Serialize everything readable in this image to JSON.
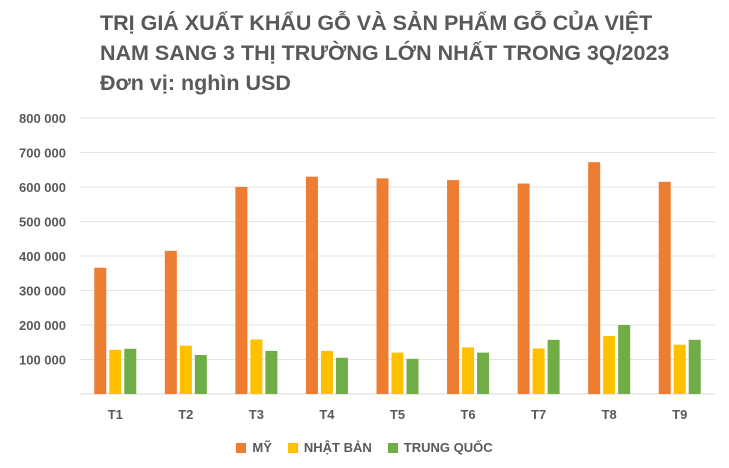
{
  "chart_data": {
    "type": "bar",
    "title_lines": [
      "TRỊ GIÁ XUẤT KHẨU GỖ VÀ SẢN PHẨM GỖ CỦA VIỆT",
      "NAM SANG 3 THỊ TRƯỜNG LỚN NHẤT TRONG 3Q/2023",
      "Đơn vị: nghìn USD"
    ],
    "categories": [
      "T1",
      "T2",
      "T3",
      "T4",
      "T5",
      "T6",
      "T7",
      "T8",
      "T9"
    ],
    "series": [
      {
        "name": "MỸ",
        "color": "#ED7D31",
        "values": [
          366000,
          415000,
          600000,
          630000,
          625000,
          620000,
          610000,
          672000,
          615000
        ]
      },
      {
        "name": "NHẬT BẢN",
        "color": "#FFC000",
        "values": [
          128000,
          140000,
          158000,
          125000,
          120000,
          135000,
          132000,
          168000,
          143000
        ]
      },
      {
        "name": "TRUNG QUỐC",
        "color": "#70AD47",
        "values": [
          131000,
          113000,
          125000,
          105000,
          102000,
          120000,
          157000,
          200000,
          157000
        ]
      }
    ],
    "ylim": [
      0,
      800000
    ],
    "yticks": [
      0,
      100000,
      200000,
      300000,
      400000,
      500000,
      600000,
      700000,
      800000
    ],
    "ytick_labels": [
      "",
      "100 000",
      "200 000",
      "300 000",
      "400 000",
      "500 000",
      "600 000",
      "700 000",
      "800 000"
    ],
    "grid": true,
    "legend_position": "bottom"
  }
}
